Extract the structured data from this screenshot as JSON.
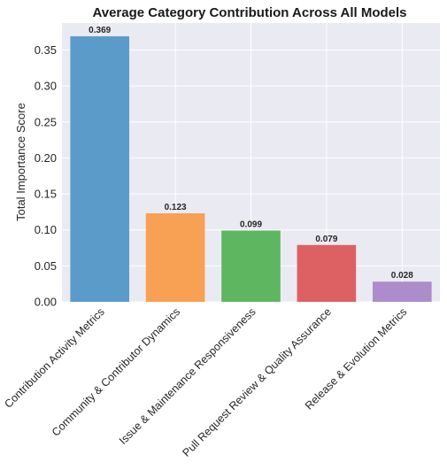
{
  "chart_data": {
    "type": "bar",
    "title": "Average Category Contribution Across All Models",
    "xlabel": "",
    "ylabel": "Total Importance Score",
    "categories": [
      "Contribution Activity Metrics",
      "Community & Contributor Dynamics",
      "Issue & Maintenance Responsiveness",
      "Pull Request Review & Quality Assurance",
      "Release & Evolution Metrics"
    ],
    "values": [
      0.369,
      0.123,
      0.099,
      0.079,
      0.028
    ],
    "data_labels": [
      "0.369",
      "0.123",
      "0.099",
      "0.079",
      "0.028"
    ],
    "colors": [
      "#5b9bc9",
      "#f8a053",
      "#5fb660",
      "#dd6062",
      "#ad8ccb"
    ],
    "ylim": [
      0,
      0.3875
    ],
    "yticks": [
      0.0,
      0.05,
      0.1,
      0.15,
      0.2,
      0.25,
      0.3,
      0.35
    ],
    "ytick_labels": [
      "0.00",
      "0.05",
      "0.10",
      "0.15",
      "0.20",
      "0.25",
      "0.30",
      "0.35"
    ],
    "grid": true,
    "plot_background": "#eaeaf2",
    "grid_color": "#ffffff"
  }
}
